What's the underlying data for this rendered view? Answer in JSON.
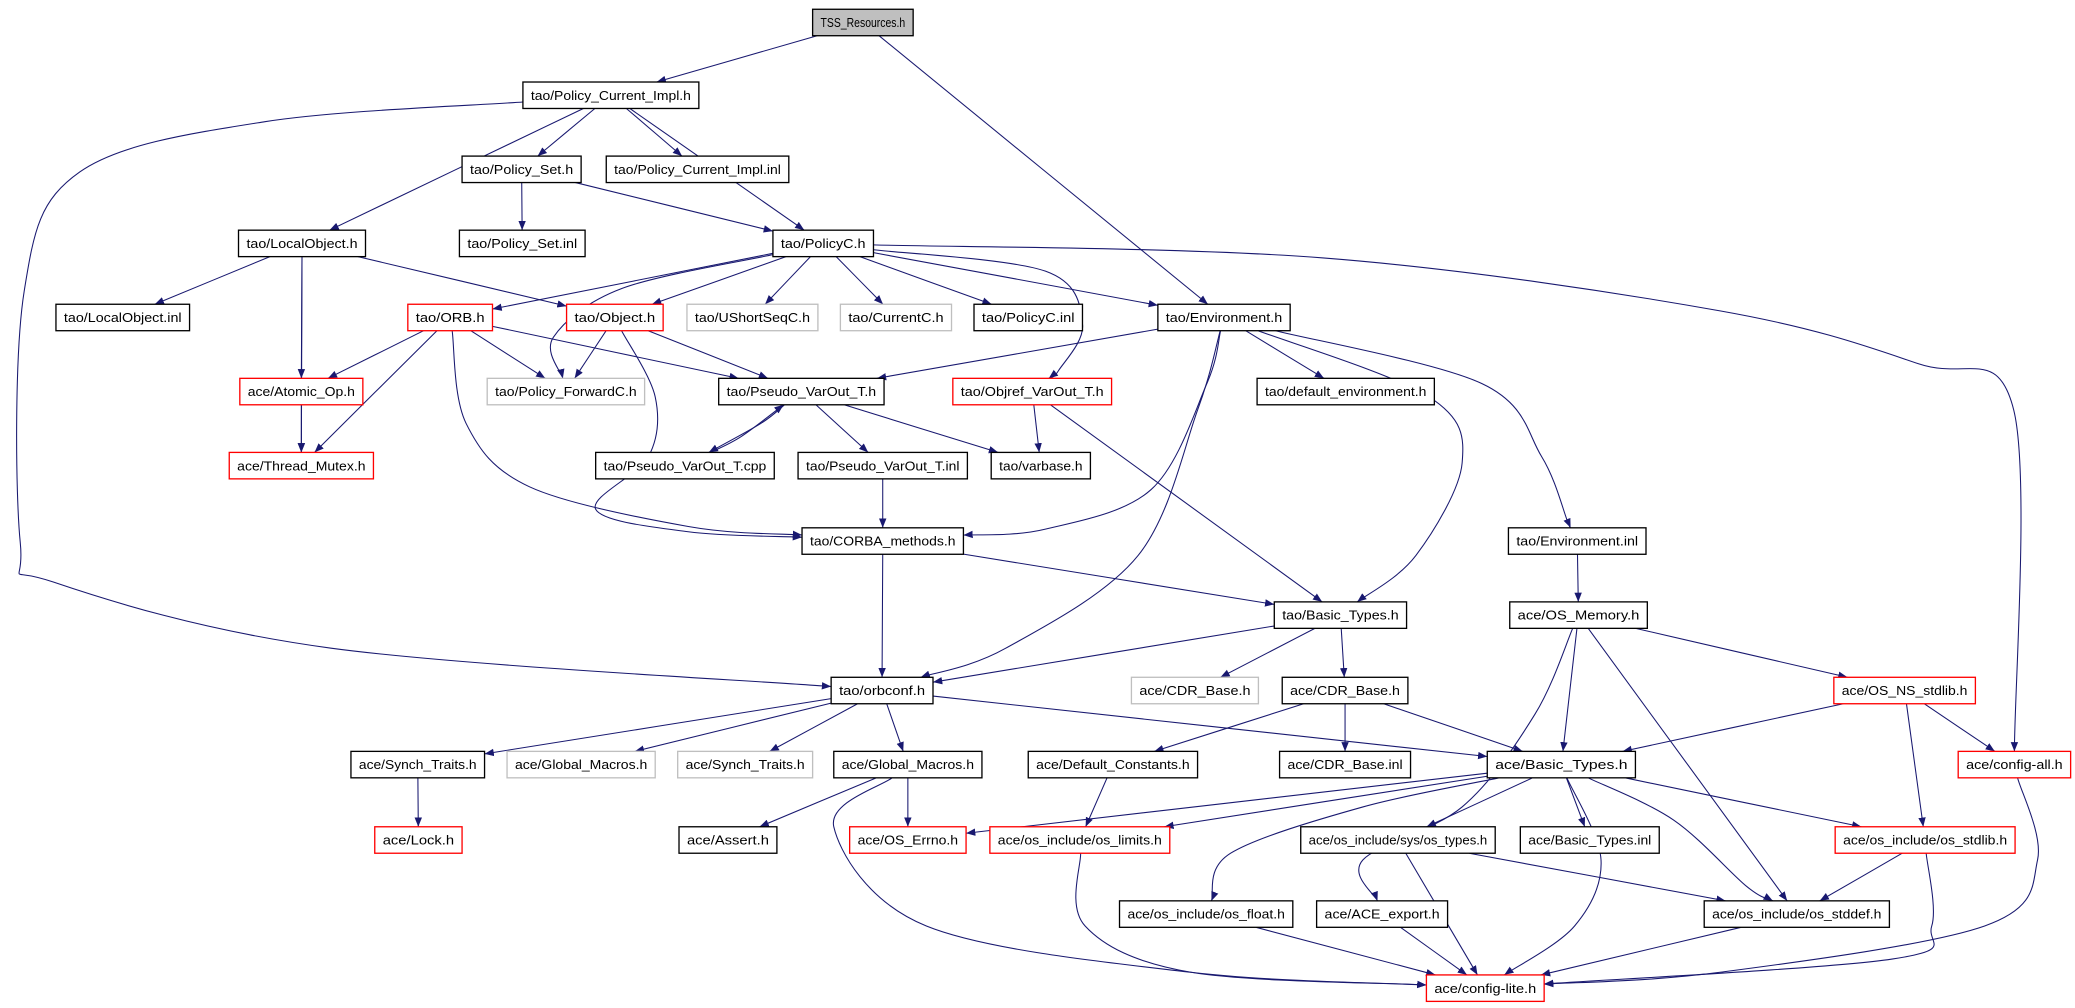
{
  "colors": {
    "edge": "#191970",
    "border_normal": "#000000",
    "border_red": "#ff0000",
    "border_gray": "#bfbfbf",
    "root_fill": "#bfbfbf"
  },
  "nodes": [
    {
      "id": "tss",
      "label": "TSS_Resources.h",
      "style": "root"
    },
    {
      "id": "pci",
      "label": "tao/Policy_Current_Impl.h",
      "style": "normal"
    },
    {
      "id": "pset",
      "label": "tao/Policy_Set.h",
      "style": "normal"
    },
    {
      "id": "pciinl",
      "label": "tao/Policy_Current_Impl.inl",
      "style": "normal"
    },
    {
      "id": "lo",
      "label": "tao/LocalObject.h",
      "style": "normal"
    },
    {
      "id": "psetinl",
      "label": "tao/Policy_Set.inl",
      "style": "normal"
    },
    {
      "id": "pc",
      "label": "tao/PolicyC.h",
      "style": "normal"
    },
    {
      "id": "loinl",
      "label": "tao/LocalObject.inl",
      "style": "normal"
    },
    {
      "id": "orb",
      "label": "tao/ORB.h",
      "style": "red"
    },
    {
      "id": "obj",
      "label": "tao/Object.h",
      "style": "red"
    },
    {
      "id": "ushort",
      "label": "tao/UShortSeqC.h",
      "style": "gray"
    },
    {
      "id": "cur",
      "label": "tao/CurrentC.h",
      "style": "gray"
    },
    {
      "id": "pcinl",
      "label": "tao/PolicyC.inl",
      "style": "normal"
    },
    {
      "id": "env",
      "label": "tao/Environment.h",
      "style": "normal"
    },
    {
      "id": "atomic",
      "label": "ace/Atomic_Op.h",
      "style": "red"
    },
    {
      "id": "pfwd",
      "label": "tao/Policy_ForwardC.h",
      "style": "gray"
    },
    {
      "id": "pvo",
      "label": "tao/Pseudo_VarOut_T.h",
      "style": "normal"
    },
    {
      "id": "ovo",
      "label": "tao/Objref_VarOut_T.h",
      "style": "red"
    },
    {
      "id": "defenv",
      "label": "tao/default_environment.h",
      "style": "normal"
    },
    {
      "id": "tmutex",
      "label": "ace/Thread_Mutex.h",
      "style": "red"
    },
    {
      "id": "pvocpp",
      "label": "tao/Pseudo_VarOut_T.cpp",
      "style": "normal"
    },
    {
      "id": "pvoinl",
      "label": "tao/Pseudo_VarOut_T.inl",
      "style": "normal"
    },
    {
      "id": "varbase",
      "label": "tao/varbase.h",
      "style": "normal"
    },
    {
      "id": "corba",
      "label": "tao/CORBA_methods.h",
      "style": "normal"
    },
    {
      "id": "envinl",
      "label": "tao/Environment.inl",
      "style": "normal"
    },
    {
      "id": "tbt",
      "label": "tao/Basic_Types.h",
      "style": "normal"
    },
    {
      "id": "osmem",
      "label": "ace/OS_Memory.h",
      "style": "normal"
    },
    {
      "id": "orbconf",
      "label": "tao/orbconf.h",
      "style": "normal"
    },
    {
      "id": "cdrg",
      "label": "ace/CDR_Base.h",
      "style": "gray"
    },
    {
      "id": "cdr",
      "label": "ace/CDR_Base.h",
      "style": "normal"
    },
    {
      "id": "nsstdlib",
      "label": "ace/OS_NS_stdlib.h",
      "style": "red"
    },
    {
      "id": "synch",
      "label": "ace/Synch_Traits.h",
      "style": "normal"
    },
    {
      "id": "gmg",
      "label": "ace/Global_Macros.h",
      "style": "gray"
    },
    {
      "id": "synchg",
      "label": "ace/Synch_Traits.h",
      "style": "gray"
    },
    {
      "id": "gm",
      "label": "ace/Global_Macros.h",
      "style": "normal"
    },
    {
      "id": "defc",
      "label": "ace/Default_Constants.h",
      "style": "normal"
    },
    {
      "id": "cdrinl",
      "label": "ace/CDR_Base.inl",
      "style": "normal"
    },
    {
      "id": "abt",
      "label": "ace/Basic_Types.h",
      "style": "normal"
    },
    {
      "id": "cfgall",
      "label": "ace/config-all.h",
      "style": "red"
    },
    {
      "id": "lock",
      "label": "ace/Lock.h",
      "style": "red"
    },
    {
      "id": "assert",
      "label": "ace/Assert.h",
      "style": "normal"
    },
    {
      "id": "errno",
      "label": "ace/OS_Errno.h",
      "style": "red"
    },
    {
      "id": "limits",
      "label": "ace/os_include/os_limits.h",
      "style": "red"
    },
    {
      "id": "ostypes",
      "label": "ace/os_include/sys/os_types.h",
      "style": "normal"
    },
    {
      "id": "abtinl",
      "label": "ace/Basic_Types.inl",
      "style": "normal"
    },
    {
      "id": "osstdlib",
      "label": "ace/os_include/os_stdlib.h",
      "style": "red"
    },
    {
      "id": "float",
      "label": "ace/os_include/os_float.h",
      "style": "normal"
    },
    {
      "id": "export",
      "label": "ace/ACE_export.h",
      "style": "normal"
    },
    {
      "id": "stddef",
      "label": "ace/os_include/os_stddef.h",
      "style": "normal"
    },
    {
      "id": "cfglite",
      "label": "ace/config-lite.h",
      "style": "red"
    }
  ],
  "edges": [
    [
      "tss",
      "pci"
    ],
    [
      "tss",
      "env"
    ],
    [
      "pci",
      "lo"
    ],
    [
      "pci",
      "pset"
    ],
    [
      "pci",
      "pciinl"
    ],
    [
      "pci",
      "pc"
    ],
    [
      "pci",
      "orbconf"
    ],
    [
      "pset",
      "psetinl"
    ],
    [
      "pset",
      "pc"
    ],
    [
      "lo",
      "loinl"
    ],
    [
      "lo",
      "atomic"
    ],
    [
      "lo",
      "tmutex"
    ],
    [
      "lo",
      "obj"
    ],
    [
      "pc",
      "orb"
    ],
    [
      "pc",
      "obj"
    ],
    [
      "pc",
      "ushort"
    ],
    [
      "pc",
      "cur"
    ],
    [
      "pc",
      "pcinl"
    ],
    [
      "pc",
      "env"
    ],
    [
      "pc",
      "ovo"
    ],
    [
      "pc",
      "pfwd"
    ],
    [
      "pc",
      "cfgall"
    ],
    [
      "orb",
      "atomic"
    ],
    [
      "orb",
      "tmutex"
    ],
    [
      "orb",
      "pfwd"
    ],
    [
      "orb",
      "pvo"
    ],
    [
      "orb",
      "corba"
    ],
    [
      "obj",
      "pfwd"
    ],
    [
      "obj",
      "pvo"
    ],
    [
      "obj",
      "corba"
    ],
    [
      "atomic",
      "tmutex"
    ],
    [
      "env",
      "pvo"
    ],
    [
      "env",
      "defenv"
    ],
    [
      "env",
      "corba"
    ],
    [
      "env",
      "orbconf"
    ],
    [
      "env",
      "tbt"
    ],
    [
      "env",
      "envinl"
    ],
    [
      "pvo",
      "pvocpp"
    ],
    [
      "pvocpp",
      "pvo"
    ],
    [
      "pvo",
      "pvoinl"
    ],
    [
      "pvo",
      "varbase"
    ],
    [
      "ovo",
      "varbase"
    ],
    [
      "ovo",
      "tbt"
    ],
    [
      "pvoinl",
      "corba"
    ],
    [
      "corba",
      "orbconf"
    ],
    [
      "corba",
      "tbt"
    ],
    [
      "envinl",
      "osmem"
    ],
    [
      "tbt",
      "orbconf"
    ],
    [
      "tbt",
      "cdrg"
    ],
    [
      "tbt",
      "cdr"
    ],
    [
      "osmem",
      "abt"
    ],
    [
      "osmem",
      "nsstdlib"
    ],
    [
      "osmem",
      "stddef"
    ],
    [
      "osmem",
      "export"
    ],
    [
      "orbconf",
      "synch"
    ],
    [
      "orbconf",
      "gmg"
    ],
    [
      "orbconf",
      "synchg"
    ],
    [
      "orbconf",
      "gm"
    ],
    [
      "orbconf",
      "abt"
    ],
    [
      "cdr",
      "defc"
    ],
    [
      "cdr",
      "cdrinl"
    ],
    [
      "cdr",
      "abt"
    ],
    [
      "nsstdlib",
      "abt"
    ],
    [
      "nsstdlib",
      "cfgall"
    ],
    [
      "nsstdlib",
      "osstdlib"
    ],
    [
      "synch",
      "lock"
    ],
    [
      "gm",
      "assert"
    ],
    [
      "gm",
      "errno"
    ],
    [
      "gm",
      "cfglite"
    ],
    [
      "defc",
      "limits"
    ],
    [
      "abt",
      "errno"
    ],
    [
      "abt",
      "limits"
    ],
    [
      "abt",
      "ostypes"
    ],
    [
      "abt",
      "abtinl"
    ],
    [
      "abt",
      "osstdlib"
    ],
    [
      "abt",
      "stddef"
    ],
    [
      "abt",
      "cfglite"
    ],
    [
      "abt",
      "float"
    ],
    [
      "limits",
      "cfglite"
    ],
    [
      "ostypes",
      "cfglite"
    ],
    [
      "ostypes",
      "stddef"
    ],
    [
      "osstdlib",
      "stddef"
    ],
    [
      "osstdlib",
      "cfglite"
    ],
    [
      "cfgall",
      "cfglite"
    ],
    [
      "float",
      "cfglite"
    ],
    [
      "export",
      "cfglite"
    ],
    [
      "stddef",
      "cfglite"
    ]
  ]
}
